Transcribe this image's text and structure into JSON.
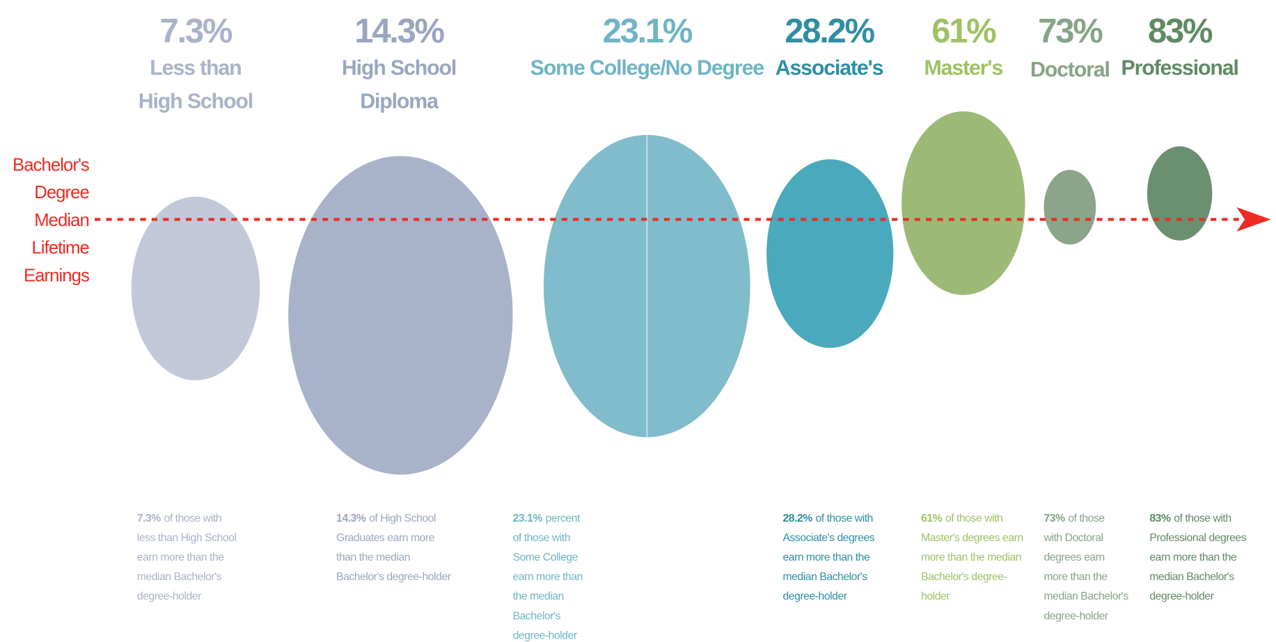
{
  "side_label": [
    "Bachelor's",
    "Degree",
    "Median",
    "Lifetime",
    "Earnings"
  ],
  "items": [
    {
      "percent": "7.3%",
      "label": [
        "Less than",
        "High School"
      ],
      "highlight": "7.3%",
      "description": [
        "of those with",
        "less than High School",
        "earn more than the",
        "median Bachelor's",
        "degree-holder"
      ],
      "color": "#c3c8d9",
      "text_color": "#aab2c8"
    },
    {
      "percent": "14.3%",
      "label": [
        "High School",
        "Diploma"
      ],
      "highlight": "14.3%",
      "description": [
        "of High School",
        "Graduates earn more",
        "than the median",
        "Bachelor's degree-holder"
      ],
      "color": "#a8b3ca",
      "text_color": "#9aa6bf"
    },
    {
      "percent": "23.1%",
      "label": [
        "Some College/No Degree"
      ],
      "highlight": "23.1%",
      "description": [
        "percent",
        "of those with",
        "Some College",
        "earn more than",
        "the median",
        "Bachelor's",
        "degree-holder"
      ],
      "color": "#80bccb",
      "text_color": "#6fb4c6"
    },
    {
      "percent": "28.2%",
      "label": [
        "Associate's"
      ],
      "highlight": "28.2%",
      "description": [
        "of those with",
        "Associate's degrees",
        "earn more than the",
        "median Bachelor's",
        "degree-holder"
      ],
      "color": "#4aa9bc",
      "text_color": "#2f8ea3"
    },
    {
      "percent": "61%",
      "label": [
        "Master's"
      ],
      "highlight": "61%",
      "description": [
        "of those with",
        "Master's degrees earn",
        "more than the median",
        "Bachelor's degree-",
        "holder"
      ],
      "color": "#9cba76",
      "text_color": "#9ec165"
    },
    {
      "percent": "73%",
      "label": [
        "Doctoral"
      ],
      "highlight": "73%",
      "description": [
        "of those",
        "with Doctoral",
        "degrees earn",
        "more than the",
        "median Bachelor's",
        "degree-holder"
      ],
      "color": "#8ba58a",
      "text_color": "#86a487"
    },
    {
      "percent": "83%",
      "label": [
        "Professional"
      ],
      "highlight": "83%",
      "description": [
        "of those with",
        "Professional degrees",
        "earn more than the",
        "median Bachelor's",
        "degree-holder"
      ],
      "color": "#6a9070",
      "text_color": "#5f8a63"
    }
  ]
}
